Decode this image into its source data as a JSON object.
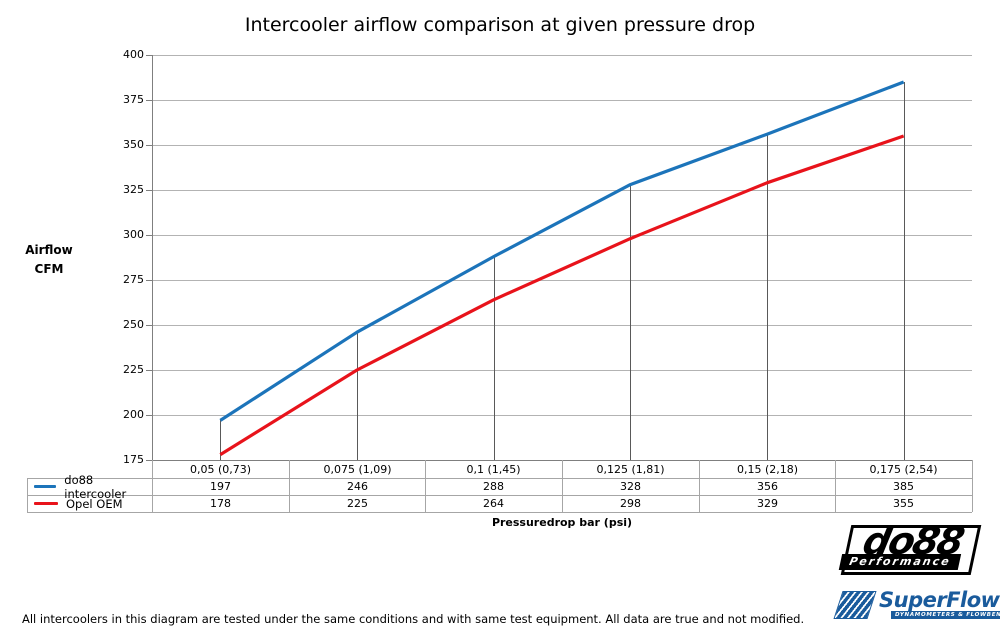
{
  "chart_data": {
    "type": "line",
    "title": "Intercooler airflow comparison at given pressure drop",
    "xlabel": "Pressuredrop bar (psi)",
    "ylabel": "Airflow CFM",
    "ylabel_lines": [
      "Airflow",
      "CFM"
    ],
    "categories": [
      "0,05 (0,73)",
      "0,075 (1,09)",
      "0,1 (1,45)",
      "0,125 (1,81)",
      "0,15 (2,18)",
      "0,175 (2,54)"
    ],
    "series": [
      {
        "name": "do88 intercooler",
        "color": "#1c74ba",
        "values": [
          197,
          246,
          288,
          328,
          356,
          385
        ]
      },
      {
        "name": "Opel OEM",
        "color": "#e8131b",
        "values": [
          178,
          225,
          264,
          298,
          329,
          355
        ]
      }
    ],
    "ylim": [
      175,
      400
    ],
    "ytick_step": 25,
    "grid": "horizontal",
    "legend_position": "table-left",
    "drop_lines_at_categories": true,
    "colors": {
      "gridline": "#b3b3b3",
      "axis": "#7f7f7f",
      "table_border": "#a6a6a6",
      "drop_line": "#595959"
    }
  },
  "footer": "All intercoolers in this diagram are tested under the same conditions and with same test equipment. All data are true and not modified.",
  "logos": {
    "do88": {
      "main": "do88",
      "sub": "Performance"
    },
    "superflow": {
      "main": "SuperFlow",
      "tm": "™",
      "sub": "DYNAMOMETERS & FLOWBENCHES"
    }
  }
}
